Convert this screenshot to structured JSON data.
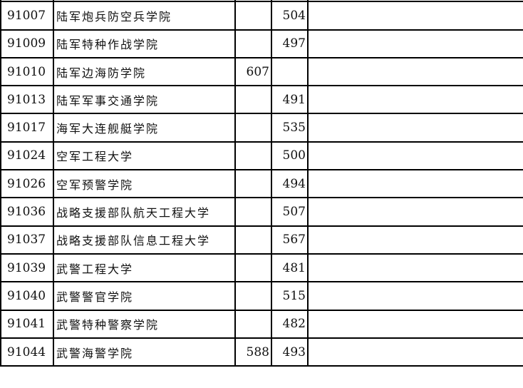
{
  "rows": [
    {
      "code": "91007",
      "name": "陆军炮兵防空兵学院",
      "a": "",
      "b": "504"
    },
    {
      "code": "91009",
      "name": "陆军特种作战学院",
      "a": "",
      "b": "497"
    },
    {
      "code": "91010",
      "name": "陆军边海防学院",
      "a": "607",
      "b": ""
    },
    {
      "code": "91013",
      "name": "陆军军事交通学院",
      "a": "",
      "b": "491"
    },
    {
      "code": "91017",
      "name": "海军大连舰艇学院",
      "a": "",
      "b": "535"
    },
    {
      "code": "91024",
      "name": "空军工程大学",
      "a": "",
      "b": "500"
    },
    {
      "code": "91026",
      "name": "空军预警学院",
      "a": "",
      "b": "494"
    },
    {
      "code": "91036",
      "name": "战略支援部队航天工程大学",
      "a": "",
      "b": "507"
    },
    {
      "code": "91037",
      "name": "战略支援部队信息工程大学",
      "a": "",
      "b": "567"
    },
    {
      "code": "91039",
      "name": "武警工程大学",
      "a": "",
      "b": "481"
    },
    {
      "code": "91040",
      "name": "武警警官学院",
      "a": "",
      "b": "515"
    },
    {
      "code": "91041",
      "name": "武警特种警察学院",
      "a": "",
      "b": "482"
    },
    {
      "code": "91044",
      "name": "武警海警学院",
      "a": "588",
      "b": "493"
    }
  ]
}
